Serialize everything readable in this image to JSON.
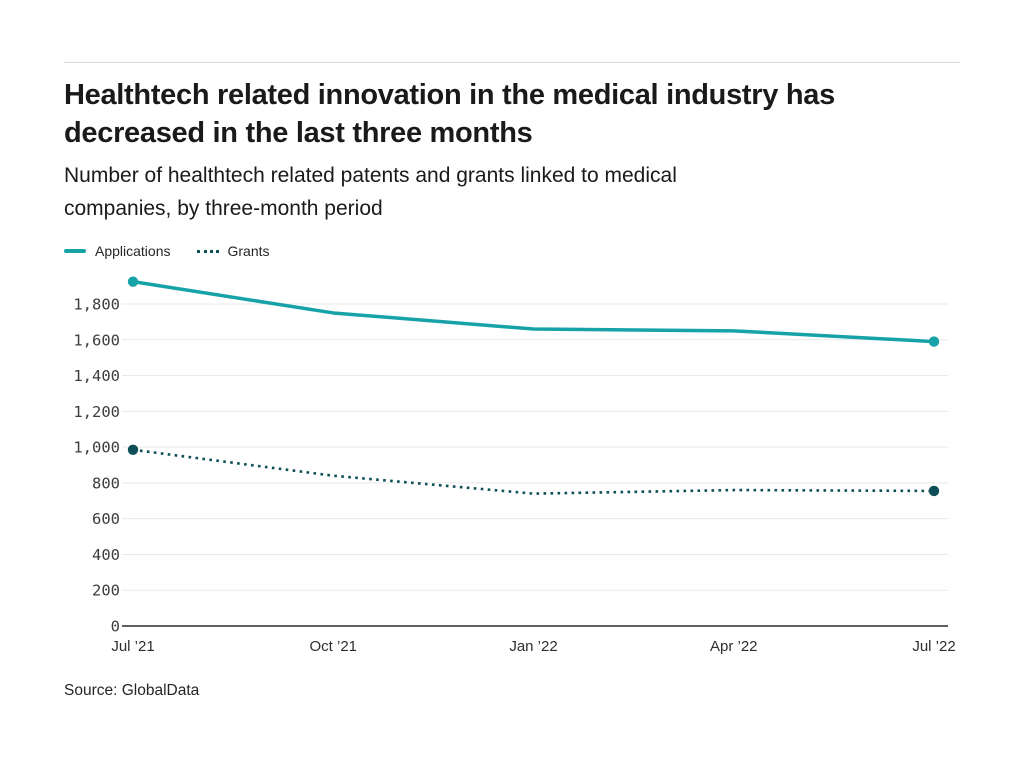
{
  "page": {
    "title_line1": "Healthtech related innovation in the medical industry has",
    "title_line2": "decreased in the last three months",
    "subtitle_line1": "Number of healthtech related patents and grants linked to medical",
    "subtitle_line2": "companies, by three-month period",
    "source": "Source: GlobalData"
  },
  "legend": [
    {
      "label": "Applications",
      "style": "solid",
      "color": "#17a2a8"
    },
    {
      "label": "Grants",
      "style": "dotted",
      "color": "#0e4f57"
    }
  ],
  "colors": {
    "applications": "#17a2a8",
    "grants": "#0e4f57",
    "gridline": "#e9e9e9",
    "axis_line": "#5f5f5f",
    "title_text": "#1a1a1a"
  },
  "chart_data": {
    "type": "line",
    "title": "Healthtech related innovation in the medical industry has decreased in the last three months",
    "subtitle": "Number of healthtech related patents and grants linked to medical companies, by three-month period",
    "categories": [
      "Jul ’21",
      "Oct ’21",
      "Jan ’22",
      "Apr ’22",
      "Jul ’22"
    ],
    "series": [
      {
        "name": "Applications",
        "values": [
          1925,
          1750,
          1660,
          1650,
          1590
        ],
        "color": "#17a2a8",
        "line_style": "solid"
      },
      {
        "name": "Grants",
        "values": [
          985,
          840,
          740,
          760,
          755
        ],
        "color": "#0e4f57",
        "line_style": "dotted"
      }
    ],
    "xlabel": "",
    "ylabel": "",
    "ylim": [
      0,
      2000
    ],
    "yticks": [
      0,
      200,
      400,
      600,
      800,
      1000,
      1200,
      1400,
      1600,
      1800
    ],
    "grid": true,
    "legend_position": "top-left",
    "markers": "endpoints-only",
    "source": "GlobalData"
  }
}
